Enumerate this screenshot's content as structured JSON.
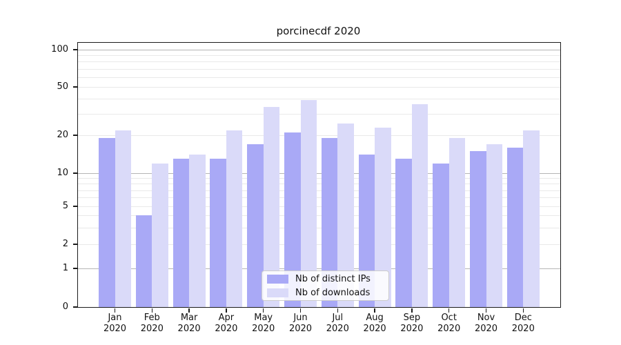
{
  "chart_data": {
    "type": "bar",
    "title": "porcinecdf 2020",
    "categories": [
      "Jan",
      "Feb",
      "Mar",
      "Apr",
      "May",
      "Jun",
      "Jul",
      "Aug",
      "Sep",
      "Oct",
      "Nov",
      "Dec"
    ],
    "x_year_label": "2020",
    "series": [
      {
        "name": "Nb of distinct IPs",
        "color": "#a9a9f6",
        "values": [
          19,
          4,
          13,
          13,
          17,
          21,
          19,
          14,
          13,
          12,
          15,
          16
        ]
      },
      {
        "name": "Nb of downloads",
        "color": "#dadaf9",
        "values": [
          22,
          12,
          14,
          22,
          34,
          39,
          25,
          23,
          36,
          19,
          17,
          22
        ]
      }
    ],
    "y_axis": {
      "scale": "symlog",
      "tick_labels": [
        "100",
        "50",
        "20",
        "10",
        "5",
        "2",
        "1",
        "0"
      ],
      "tick_values": [
        100,
        50,
        20,
        10,
        5,
        2,
        1,
        0
      ],
      "major_gridlines": [
        1,
        10,
        100
      ],
      "minor_gridlines": [
        2,
        3,
        4,
        6,
        7,
        8,
        9,
        5,
        20,
        30,
        40,
        50,
        60,
        70,
        80,
        90
      ],
      "ylim": [
        0,
        130
      ]
    },
    "grid": true,
    "legend_position": "lower center",
    "colors": {
      "major_grid": "#b5b5b5",
      "minor_grid": "#e9e9e9",
      "spine": "#1a1a1a"
    }
  }
}
